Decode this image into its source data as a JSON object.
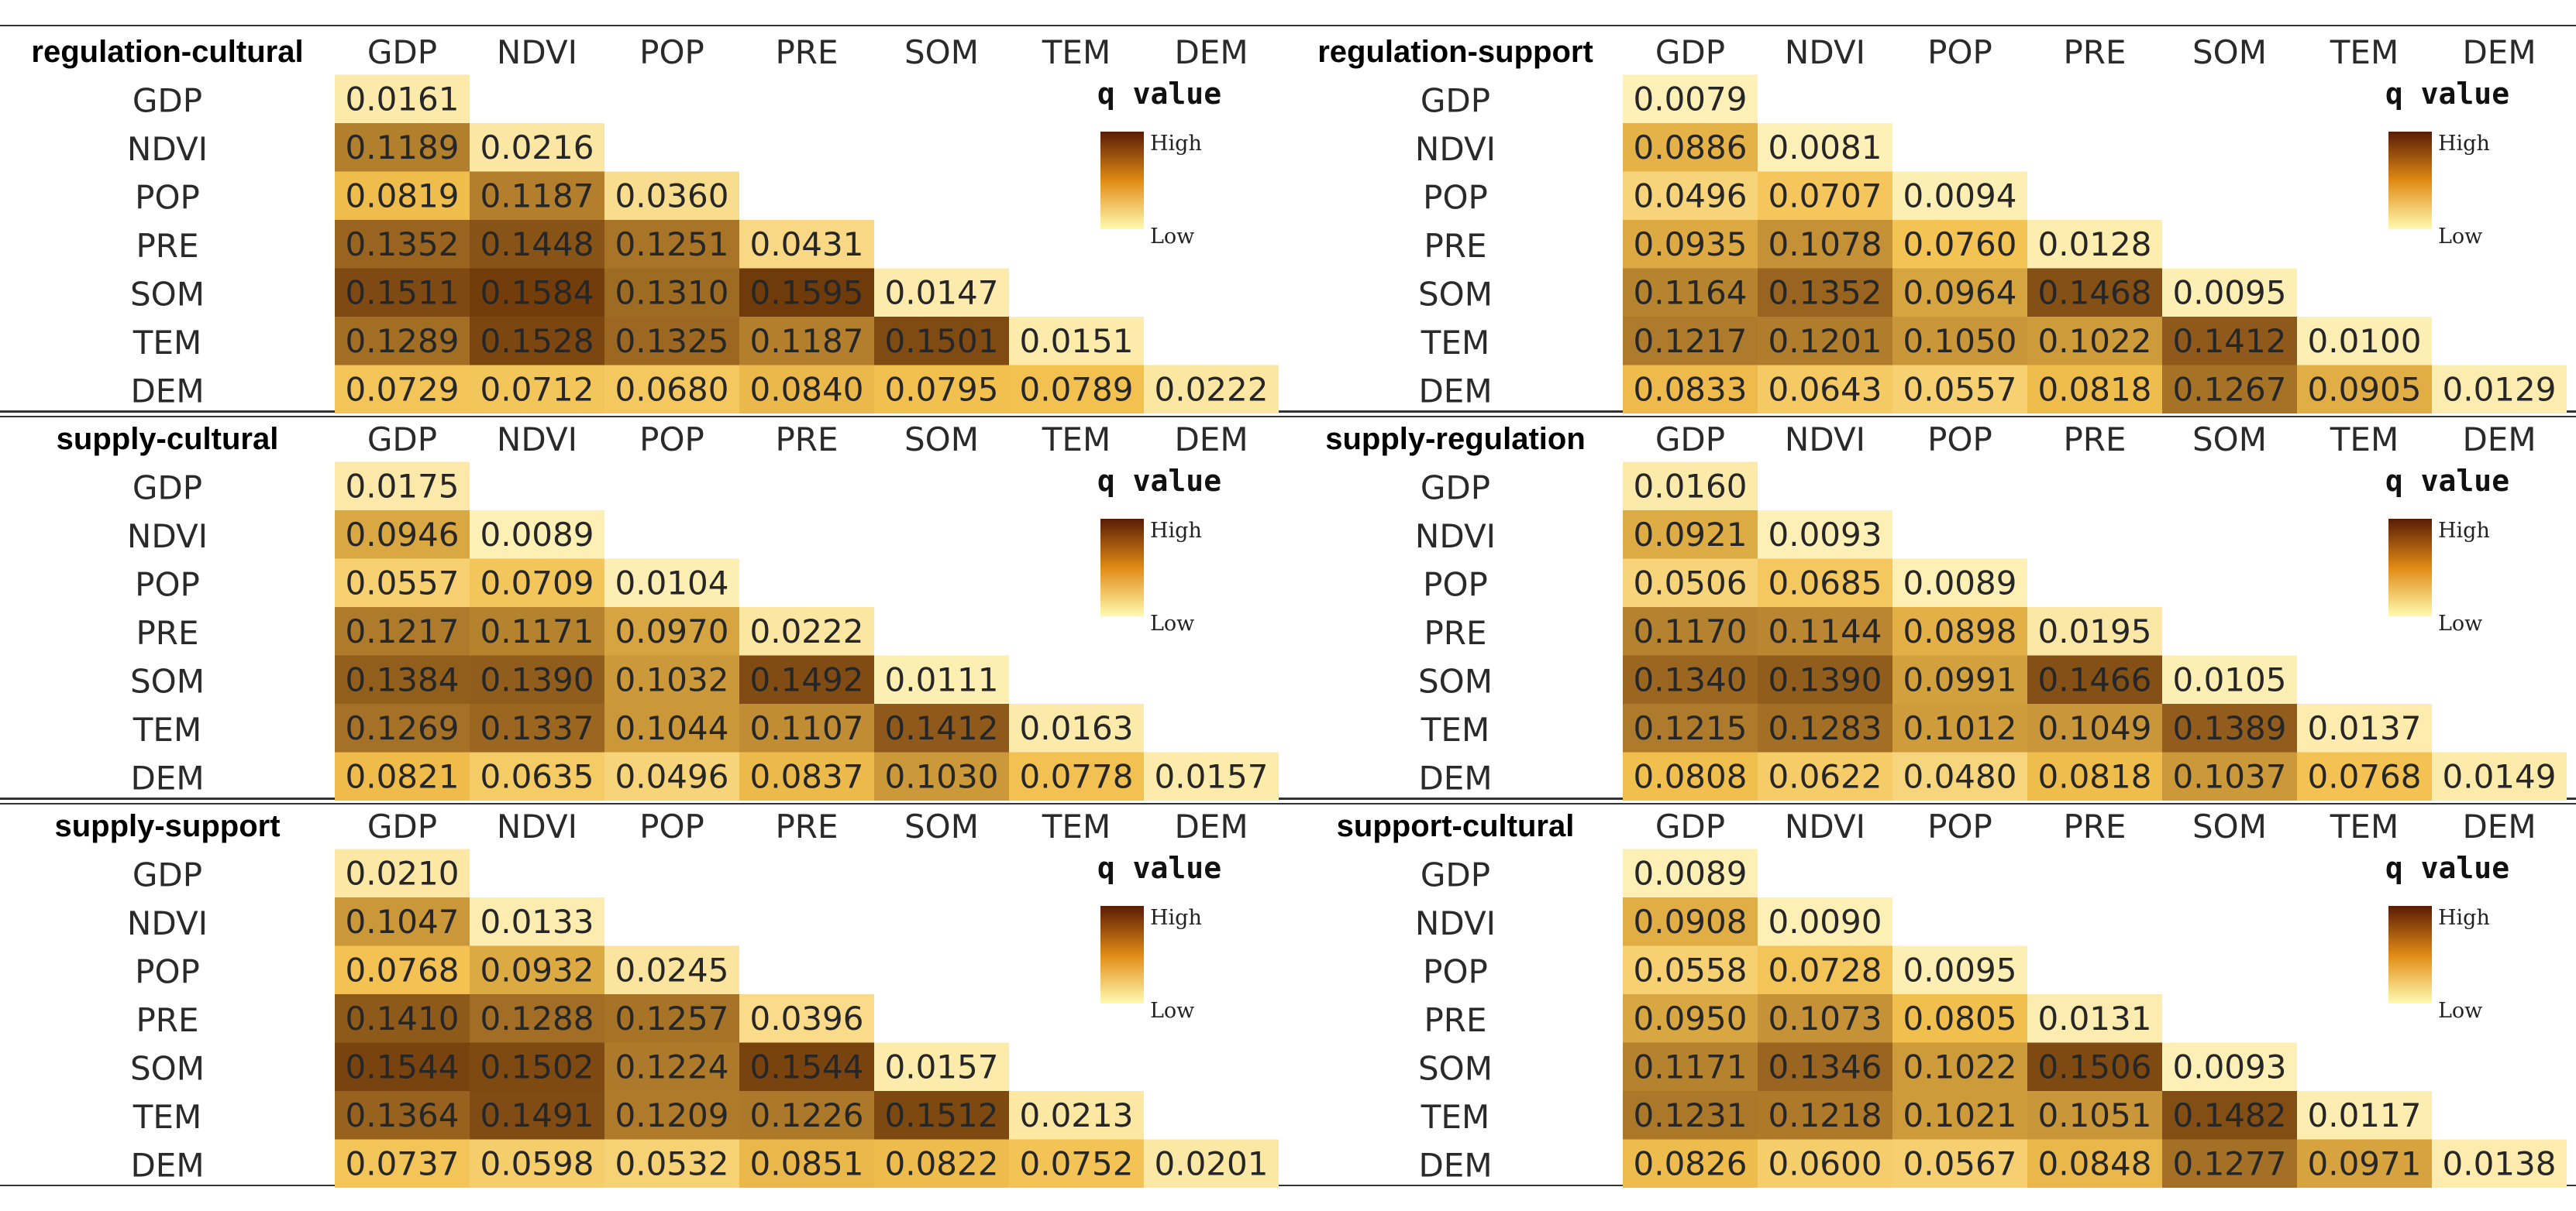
{
  "chart_data": [
    {
      "type": "heatmap",
      "title": "regulation-cultural",
      "columns": [
        "GDP",
        "NDVI",
        "POP",
        "PRE",
        "SOM",
        "TEM",
        "DEM"
      ],
      "rows": [
        "GDP",
        "NDVI",
        "POP",
        "PRE",
        "SOM",
        "TEM",
        "DEM"
      ],
      "values": [
        [
          0.0161
        ],
        [
          0.1189,
          0.0216
        ],
        [
          0.0819,
          0.1187,
          0.036
        ],
        [
          0.1352,
          0.1448,
          0.1251,
          0.0431
        ],
        [
          0.1511,
          0.1584,
          0.131,
          0.1595,
          0.0147
        ],
        [
          0.1289,
          0.1528,
          0.1325,
          0.1187,
          0.1501,
          0.0151
        ],
        [
          0.0729,
          0.0712,
          0.068,
          0.084,
          0.0795,
          0.0789,
          0.0222
        ]
      ],
      "labels": [
        [
          "0.0161"
        ],
        [
          "0.1189",
          "0.0216"
        ],
        [
          "0.0819",
          "0.1187",
          "0.0360"
        ],
        [
          "0.1352",
          "0.1448",
          "0.1251",
          "0.0431"
        ],
        [
          "0.1511",
          "0.1584",
          "0.1310",
          "0.1595",
          "0.0147"
        ],
        [
          "0.1289",
          "0.1528",
          "0.1325",
          "0.1187",
          "0.1501",
          "0.0151"
        ],
        [
          "0.0729",
          "0.0712",
          "0.0680",
          "0.0840",
          "0.0795",
          "0.0789",
          "0.0222"
        ]
      ],
      "legend": {
        "title": "q value",
        "high": "High",
        "low": "Low"
      }
    },
    {
      "type": "heatmap",
      "title": "regulation-support",
      "columns": [
        "GDP",
        "NDVI",
        "POP",
        "PRE",
        "SOM",
        "TEM",
        "DEM"
      ],
      "rows": [
        "GDP",
        "NDVI",
        "POP",
        "PRE",
        "SOM",
        "TEM",
        "DEM"
      ],
      "values": [
        [
          0.0079
        ],
        [
          0.0886,
          0.0081
        ],
        [
          0.0496,
          0.0707,
          0.0094
        ],
        [
          0.0935,
          0.1078,
          0.076,
          0.0128
        ],
        [
          0.1164,
          0.1352,
          0.0964,
          0.1468,
          0.0095
        ],
        [
          0.1217,
          0.1201,
          0.105,
          0.1022,
          0.1412,
          0.01
        ],
        [
          0.0833,
          0.0643,
          0.0557,
          0.0818,
          0.1267,
          0.0905,
          0.0129
        ]
      ],
      "labels": [
        [
          "0.0079"
        ],
        [
          "0.0886",
          "0.0081"
        ],
        [
          "0.0496",
          "0.0707",
          "0.0094"
        ],
        [
          "0.0935",
          "0.1078",
          "0.0760",
          "0.0128"
        ],
        [
          "0.1164",
          "0.1352",
          "0.0964",
          "0.1468",
          "0.0095"
        ],
        [
          "0.1217",
          "0.1201",
          "0.1050",
          "0.1022",
          "0.1412",
          "0.0100"
        ],
        [
          "0.0833",
          "0.0643",
          "0.0557",
          "0.0818",
          "0.1267",
          "0.0905",
          "0.0129"
        ]
      ],
      "legend": {
        "title": "q value",
        "high": "High",
        "low": "Low"
      }
    },
    {
      "type": "heatmap",
      "title": "supply-cultural",
      "columns": [
        "GDP",
        "NDVI",
        "POP",
        "PRE",
        "SOM",
        "TEM",
        "DEM"
      ],
      "rows": [
        "GDP",
        "NDVI",
        "POP",
        "PRE",
        "SOM",
        "TEM",
        "DEM"
      ],
      "values": [
        [
          0.0175
        ],
        [
          0.0946,
          0.0089
        ],
        [
          0.0557,
          0.0709,
          0.0104
        ],
        [
          0.1217,
          0.1171,
          0.097,
          0.0222
        ],
        [
          0.1384,
          0.139,
          0.1032,
          0.1492,
          0.0111
        ],
        [
          0.1269,
          0.1337,
          0.1044,
          0.1107,
          0.1412,
          0.0163
        ],
        [
          0.0821,
          0.0635,
          0.0496,
          0.0837,
          0.103,
          0.0778,
          0.0157
        ]
      ],
      "labels": [
        [
          "0.0175"
        ],
        [
          "0.0946",
          "0.0089"
        ],
        [
          "0.0557",
          "0.0709",
          "0.0104"
        ],
        [
          "0.1217",
          "0.1171",
          "0.0970",
          "0.0222"
        ],
        [
          "0.1384",
          "0.1390",
          "0.1032",
          "0.1492",
          "0.0111"
        ],
        [
          "0.1269",
          "0.1337",
          "0.1044",
          "0.1107",
          "0.1412",
          "0.0163"
        ],
        [
          "0.0821",
          "0.0635",
          "0.0496",
          "0.0837",
          "0.1030",
          "0.0778",
          "0.0157"
        ]
      ],
      "legend": {
        "title": "q value",
        "high": "High",
        "low": "Low"
      }
    },
    {
      "type": "heatmap",
      "title": "supply-regulation",
      "columns": [
        "GDP",
        "NDVI",
        "POP",
        "PRE",
        "SOM",
        "TEM",
        "DEM"
      ],
      "rows": [
        "GDP",
        "NDVI",
        "POP",
        "PRE",
        "SOM",
        "TEM",
        "DEM"
      ],
      "values": [
        [
          0.016
        ],
        [
          0.0921,
          0.0093
        ],
        [
          0.0506,
          0.0685,
          0.0089
        ],
        [
          0.117,
          0.1144,
          0.0898,
          0.0195
        ],
        [
          0.134,
          0.139,
          0.0991,
          0.1466,
          0.0105
        ],
        [
          0.1215,
          0.1283,
          0.1012,
          0.1049,
          0.1389,
          0.0137
        ],
        [
          0.0808,
          0.0622,
          0.048,
          0.0818,
          0.1037,
          0.0768,
          0.0149
        ]
      ],
      "labels": [
        [
          "0.0160"
        ],
        [
          "0.0921",
          "0.0093"
        ],
        [
          "0.0506",
          "0.0685",
          "0.0089"
        ],
        [
          "0.1170",
          "0.1144",
          "0.0898",
          "0.0195"
        ],
        [
          "0.1340",
          "0.1390",
          "0.0991",
          "0.1466",
          "0.0105"
        ],
        [
          "0.1215",
          "0.1283",
          "0.1012",
          "0.1049",
          "0.1389",
          "0.0137"
        ],
        [
          "0.0808",
          "0.0622",
          "0.0480",
          "0.0818",
          "0.1037",
          "0.0768",
          "0.0149"
        ]
      ],
      "legend": {
        "title": "q value",
        "high": "High",
        "low": "Low"
      }
    },
    {
      "type": "heatmap",
      "title": "supply-support",
      "columns": [
        "GDP",
        "NDVI",
        "POP",
        "PRE",
        "SOM",
        "TEM",
        "DEM"
      ],
      "rows": [
        "GDP",
        "NDVI",
        "POP",
        "PRE",
        "SOM",
        "TEM",
        "DEM"
      ],
      "values": [
        [
          0.021
        ],
        [
          0.1047,
          0.0133
        ],
        [
          0.0768,
          0.0932,
          0.0245
        ],
        [
          0.141,
          0.1288,
          0.1257,
          0.0396
        ],
        [
          0.1544,
          0.1502,
          0.1224,
          0.1544,
          0.0157
        ],
        [
          0.1364,
          0.1491,
          0.1209,
          0.1226,
          0.1512,
          0.0213
        ],
        [
          0.0737,
          0.0598,
          0.0532,
          0.0851,
          0.0822,
          0.0752,
          0.0201
        ]
      ],
      "labels": [
        [
          "0.0210"
        ],
        [
          "0.1047",
          "0.0133"
        ],
        [
          "0.0768",
          "0.0932",
          "0.0245"
        ],
        [
          "0.1410",
          "0.1288",
          "0.1257",
          "0.0396"
        ],
        [
          "0.1544",
          "0.1502",
          "0.1224",
          "0.1544",
          "0.0157"
        ],
        [
          "0.1364",
          "0.1491",
          "0.1209",
          "0.1226",
          "0.1512",
          "0.0213"
        ],
        [
          "0.0737",
          "0.0598",
          "0.0532",
          "0.0851",
          "0.0822",
          "0.0752",
          "0.0201"
        ]
      ],
      "legend": {
        "title": "q value",
        "high": "High",
        "low": "Low"
      }
    },
    {
      "type": "heatmap",
      "title": "support-cultural",
      "columns": [
        "GDP",
        "NDVI",
        "POP",
        "PRE",
        "SOM",
        "TEM",
        "DEM"
      ],
      "rows": [
        "GDP",
        "NDVI",
        "POP",
        "PRE",
        "SOM",
        "TEM",
        "DEM"
      ],
      "values": [
        [
          0.0089
        ],
        [
          0.0908,
          0.009
        ],
        [
          0.0558,
          0.0728,
          0.0095
        ],
        [
          0.095,
          0.1073,
          0.0805,
          0.0131
        ],
        [
          0.1171,
          0.1346,
          0.1022,
          0.1506,
          0.0093
        ],
        [
          0.1231,
          0.1218,
          0.1021,
          0.1051,
          0.1482,
          0.0117
        ],
        [
          0.0826,
          0.06,
          0.0567,
          0.0848,
          0.1277,
          0.0971,
          0.0138
        ]
      ],
      "labels": [
        [
          "0.0089"
        ],
        [
          "0.0908",
          "0.0090"
        ],
        [
          "0.0558",
          "0.0728",
          "0.0095"
        ],
        [
          "0.0950",
          "0.1073",
          "0.0805",
          "0.0131"
        ],
        [
          "0.1171",
          "0.1346",
          "0.1022",
          "0.1506",
          "0.0093"
        ],
        [
          "0.1231",
          "0.1218",
          "0.1021",
          "0.1051",
          "0.1482",
          "0.0117"
        ],
        [
          "0.0826",
          "0.0600",
          "0.0567",
          "0.0848",
          "0.1277",
          "0.0971",
          "0.0138"
        ]
      ],
      "legend": {
        "title": "q value",
        "high": "High",
        "low": "Low"
      }
    }
  ],
  "colors": {
    "low": "#fff5c2",
    "mid": "#f2c04e",
    "high": "#6f3a0a",
    "legend_top": "#5a1c06",
    "legend_mid": "#e08a14",
    "legend_bottom": "#fffbb0",
    "rule": "#333333"
  }
}
